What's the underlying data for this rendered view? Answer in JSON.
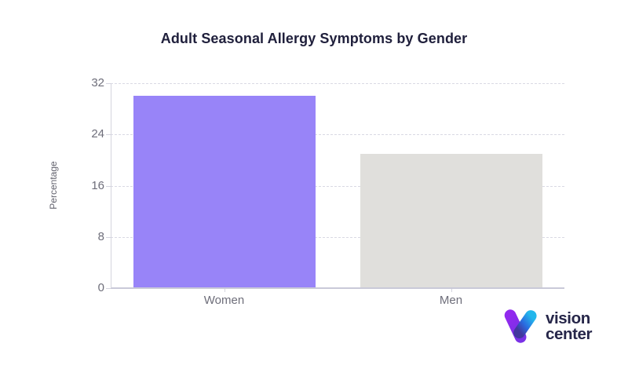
{
  "chart_data": {
    "type": "bar",
    "title": "Adult Seasonal Allergy Symptoms by Gender",
    "categories": [
      "Women",
      "Men"
    ],
    "values": [
      30,
      21
    ],
    "xlabel": "",
    "ylabel": "Percentage",
    "ylim": [
      0,
      32
    ],
    "yticks": [
      0,
      8,
      16,
      24,
      32
    ],
    "grid": "horizontal-dashed",
    "legend": "none",
    "bar_colors": [
      "#9884f8",
      "#e0dfdc"
    ]
  },
  "colors": {
    "title": "#20203c",
    "axis_text": "#6e6e7a",
    "gridline": "#d9d9e3",
    "axis_line": "#d4d4de",
    "bar_women": "#9884f8",
    "bar_men": "#e0dfdc"
  },
  "logo": {
    "name": "Vision Center",
    "line1": "vision",
    "line2": "center",
    "text_color": "#262649",
    "icon": "v-checkmark-icon",
    "icon_colors": {
      "purple_top": "#9129ee",
      "purple_bottom": "#7a31e6",
      "blue_top": "#23b7ec",
      "blue_mid": "#2a6be0",
      "blue_bottom": "#42389e"
    }
  }
}
